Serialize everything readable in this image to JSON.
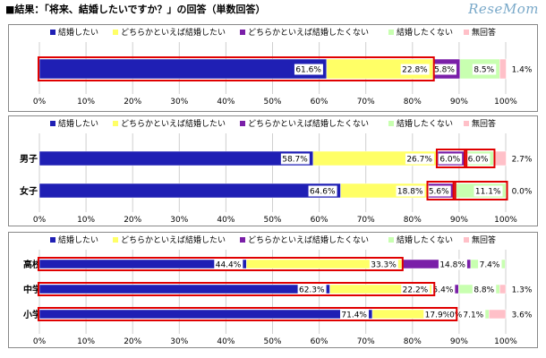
{
  "page_title": "■結果：「将来、結婚したいですか？」の回答（単数回答）",
  "brand": "ReseMom",
  "colors": {
    "結婚したい": "#1f1fb4",
    "どちらかといえば結婚したい": "#ffff66",
    "どちらかといえば結婚したくない": "#7a1fa8",
    "結婚したくない": "#c8ffb0",
    "無回答": "#ffc0c8",
    "highlight": "#e00000"
  },
  "chart_data": [
    {
      "type": "bar",
      "orientation": "horizontal",
      "stacked": true,
      "legend": [
        "結婚したい",
        "どちらかといえば結婚したい",
        "どちらかといえば結婚したくない",
        "結婚したくない",
        "無回答"
      ],
      "legend_position": "top",
      "xlim": [
        0,
        100
      ],
      "xticks": [
        "0%",
        "10%",
        "20%",
        "30%",
        "40%",
        "50%",
        "60%",
        "70%",
        "80%",
        "90%",
        "100%"
      ],
      "categories": [
        ""
      ],
      "series": [
        {
          "name": "結婚したい",
          "values": [
            61.6
          ],
          "labels": [
            "61.6%"
          ]
        },
        {
          "name": "どちらかといえば結婚したい",
          "values": [
            22.8
          ],
          "labels": [
            "22.8%"
          ]
        },
        {
          "name": "どちらかといえば結婚したくない",
          "values": [
            5.8
          ],
          "labels": [
            "5.8%"
          ]
        },
        {
          "name": "結婚したくない",
          "values": [
            8.5
          ],
          "labels": [
            "8.5%"
          ]
        },
        {
          "name": "無回答",
          "values": [
            1.4
          ],
          "labels": [
            "1.4%"
          ]
        }
      ],
      "highlights": [
        [
          0,
          0,
          1
        ]
      ]
    },
    {
      "type": "bar",
      "orientation": "horizontal",
      "stacked": true,
      "legend": [
        "結婚したい",
        "どちらかといえば結婚したい",
        "どちらかといえば結婚したくない",
        "結婚したくない",
        "無回答"
      ],
      "legend_position": "top",
      "xlim": [
        0,
        100
      ],
      "xticks": [
        "0%",
        "10%",
        "20%",
        "30%",
        "40%",
        "50%",
        "60%",
        "70%",
        "80%",
        "90%",
        "100%"
      ],
      "categories": [
        "男子",
        "女子"
      ],
      "series": [
        {
          "name": "結婚したい",
          "values": [
            58.7,
            64.6
          ],
          "labels": [
            "58.7%",
            "64.6%"
          ]
        },
        {
          "name": "どちらかといえば結婚したい",
          "values": [
            26.7,
            18.8
          ],
          "labels": [
            "26.7%",
            "18.8%"
          ]
        },
        {
          "name": "どちらかといえば結婚したくない",
          "values": [
            6.0,
            5.6
          ],
          "labels": [
            "6.0%",
            "5.6%"
          ]
        },
        {
          "name": "結婚したくない",
          "values": [
            6.0,
            11.1
          ],
          "labels": [
            "6.0%",
            "11.1%"
          ]
        },
        {
          "name": "無回答",
          "values": [
            2.7,
            0.0
          ],
          "labels": [
            "2.7%",
            "0.0%"
          ]
        }
      ],
      "highlights": [
        [
          0,
          2,
          2
        ],
        [
          0,
          3,
          3
        ],
        [
          1,
          2,
          2
        ],
        [
          1,
          3,
          3
        ]
      ]
    },
    {
      "type": "bar",
      "orientation": "horizontal",
      "stacked": true,
      "legend": [
        "結婚したい",
        "どちらかといえば結婚したい",
        "どちらかといえば結婚したくない",
        "結婚したくない",
        "無回答"
      ],
      "legend_position": "top",
      "xlim": [
        0,
        100
      ],
      "xticks": [
        "0%",
        "10%",
        "20%",
        "30%",
        "40%",
        "50%",
        "60%",
        "70%",
        "80%",
        "90%",
        "100%"
      ],
      "categories": [
        "高校生",
        "中学生",
        "小学生"
      ],
      "series": [
        {
          "name": "結婚したい",
          "values": [
            44.4,
            62.3,
            71.4
          ],
          "labels": [
            "44.4%",
            "62.3%",
            "71.4%"
          ]
        },
        {
          "name": "どちらかといえば結婚したい",
          "values": [
            33.3,
            22.2,
            17.9
          ],
          "labels": [
            "33.3%",
            "22.2%",
            "17.9%"
          ]
        },
        {
          "name": "どちらかといえば結婚したくない",
          "values": [
            14.8,
            5.4,
            0.0
          ],
          "labels": [
            "14.8%",
            "5.4%",
            "0%"
          ]
        },
        {
          "name": "結婚したくない",
          "values": [
            7.4,
            8.8,
            7.1
          ],
          "labels": [
            "7.4%",
            "8.8%",
            "7.1%"
          ]
        },
        {
          "name": "無回答",
          "values": [
            0.0,
            1.3,
            3.6
          ],
          "labels": [
            "",
            "1.3%",
            "3.6%"
          ]
        }
      ],
      "highlights": [
        [
          0,
          0,
          1
        ],
        [
          1,
          0,
          1
        ],
        [
          2,
          0,
          1
        ]
      ]
    }
  ]
}
